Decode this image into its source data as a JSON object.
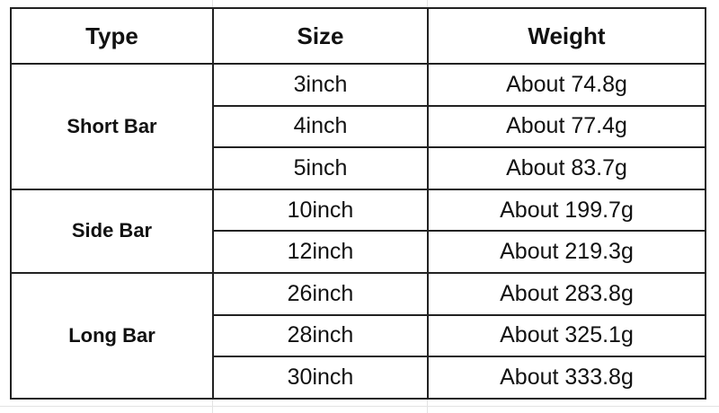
{
  "headers": {
    "type": "Type",
    "size": "Size",
    "weight": "Weight"
  },
  "groups": [
    {
      "type": "Short Bar",
      "rows": [
        {
          "size": "3inch",
          "weight": "About 74.8g"
        },
        {
          "size": "4inch",
          "weight": "About 77.4g"
        },
        {
          "size": "5inch",
          "weight": "About 83.7g"
        }
      ]
    },
    {
      "type": "Side Bar",
      "rows": [
        {
          "size": "10inch",
          "weight": "About 199.7g"
        },
        {
          "size": "12inch",
          "weight": "About 219.3g"
        }
      ]
    },
    {
      "type": "Long Bar",
      "rows": [
        {
          "size": "26inch",
          "weight": "About 283.8g"
        },
        {
          "size": "28inch",
          "weight": "About 325.1g"
        },
        {
          "size": "30inch",
          "weight": "About 333.8g"
        }
      ]
    }
  ]
}
